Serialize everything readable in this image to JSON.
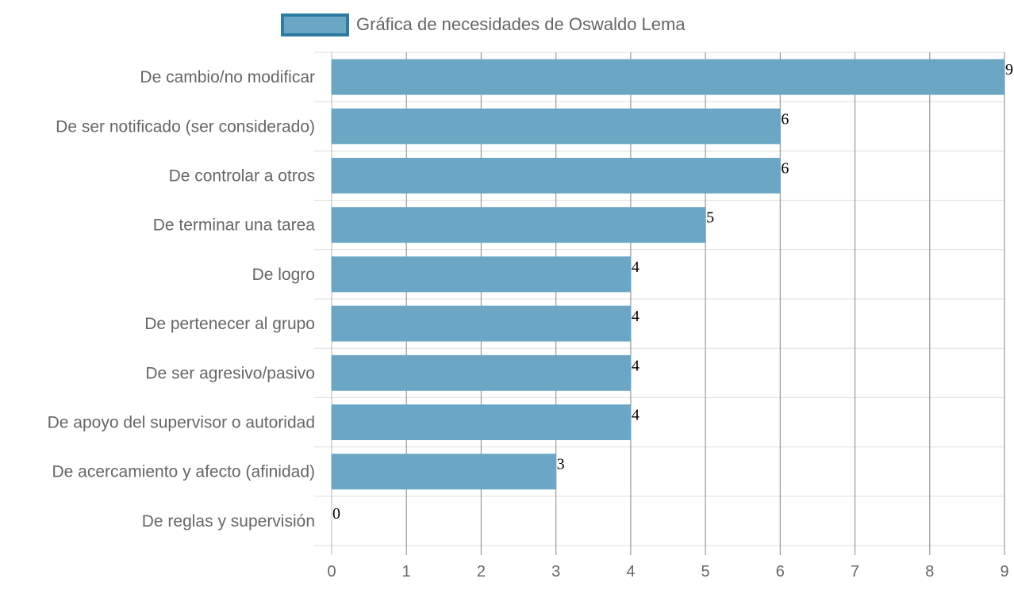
{
  "chart_data": {
    "type": "bar",
    "orientation": "horizontal",
    "categories": [
      "De cambio/no modificar",
      "De ser notificado (ser considerado)",
      "De controlar a otros",
      "De terminar una tarea",
      "De logro",
      "De pertenecer al grupo",
      "De ser agresivo/pasivo",
      "De apoyo del supervisor o autoridad",
      "De acercamiento y afecto (afinidad)",
      "De reglas y supervisión"
    ],
    "series": [
      {
        "name": "Gráfica de necesidades de Oswaldo Lema",
        "values": [
          9,
          6,
          6,
          5,
          4,
          4,
          4,
          4,
          3,
          0
        ],
        "color": "#6ba6c5",
        "border_color": "#2e7ba1"
      }
    ],
    "xlim": [
      0,
      9
    ],
    "x_ticks": [
      "0",
      "1",
      "2",
      "3",
      "4",
      "5",
      "6",
      "7",
      "8",
      "9"
    ],
    "data_labels": [
      "9",
      "6",
      "6",
      "5",
      "4",
      "4",
      "4",
      "4",
      "3",
      "0"
    ],
    "legend_position": "top",
    "grid": true
  }
}
